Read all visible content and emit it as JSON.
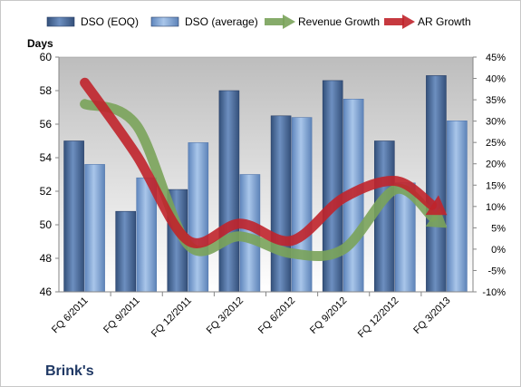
{
  "chart_data": {
    "type": "bar",
    "title": "Brink's",
    "ylabel": "Days",
    "categories": [
      "FQ 6/2011",
      "FQ 9/2011",
      "FQ 12/2011",
      "FQ 3/2012",
      "FQ 6/2012",
      "FQ 9/2012",
      "FQ 12/2012",
      "FQ 3/2013"
    ],
    "ylim": [
      46,
      60
    ],
    "y_ticks": [
      "46",
      "48",
      "50",
      "52",
      "54",
      "56",
      "58",
      "60"
    ],
    "y2lim": [
      -10,
      45
    ],
    "y2_ticks": [
      "-10%",
      "-5%",
      "0%",
      "5%",
      "10%",
      "15%",
      "20%",
      "25%",
      "30%",
      "35%",
      "40%",
      "45%"
    ],
    "grid": false,
    "legend_position": "top",
    "series": [
      {
        "name": "DSO (EOQ)",
        "type": "bar",
        "axis": "left",
        "color": "#4a6b9b",
        "values": [
          55.0,
          50.8,
          52.1,
          58.0,
          56.5,
          58.6,
          55.0,
          58.9
        ]
      },
      {
        "name": "DSO (average)",
        "type": "bar",
        "axis": "left",
        "color": "#7ea3d4",
        "values": [
          53.6,
          52.8,
          54.9,
          53.0,
          56.4,
          57.5,
          52.5,
          56.2
        ]
      },
      {
        "name": "Revenue Growth",
        "type": "arrow-line",
        "axis": "right",
        "color": "#7aa35a",
        "values": [
          34,
          29,
          1,
          3,
          -1,
          0,
          14,
          5
        ]
      },
      {
        "name": "AR Growth",
        "type": "arrow-line",
        "axis": "right",
        "color": "#c0242b",
        "values": [
          39,
          22,
          2,
          6,
          2,
          12,
          16,
          8
        ]
      }
    ]
  }
}
